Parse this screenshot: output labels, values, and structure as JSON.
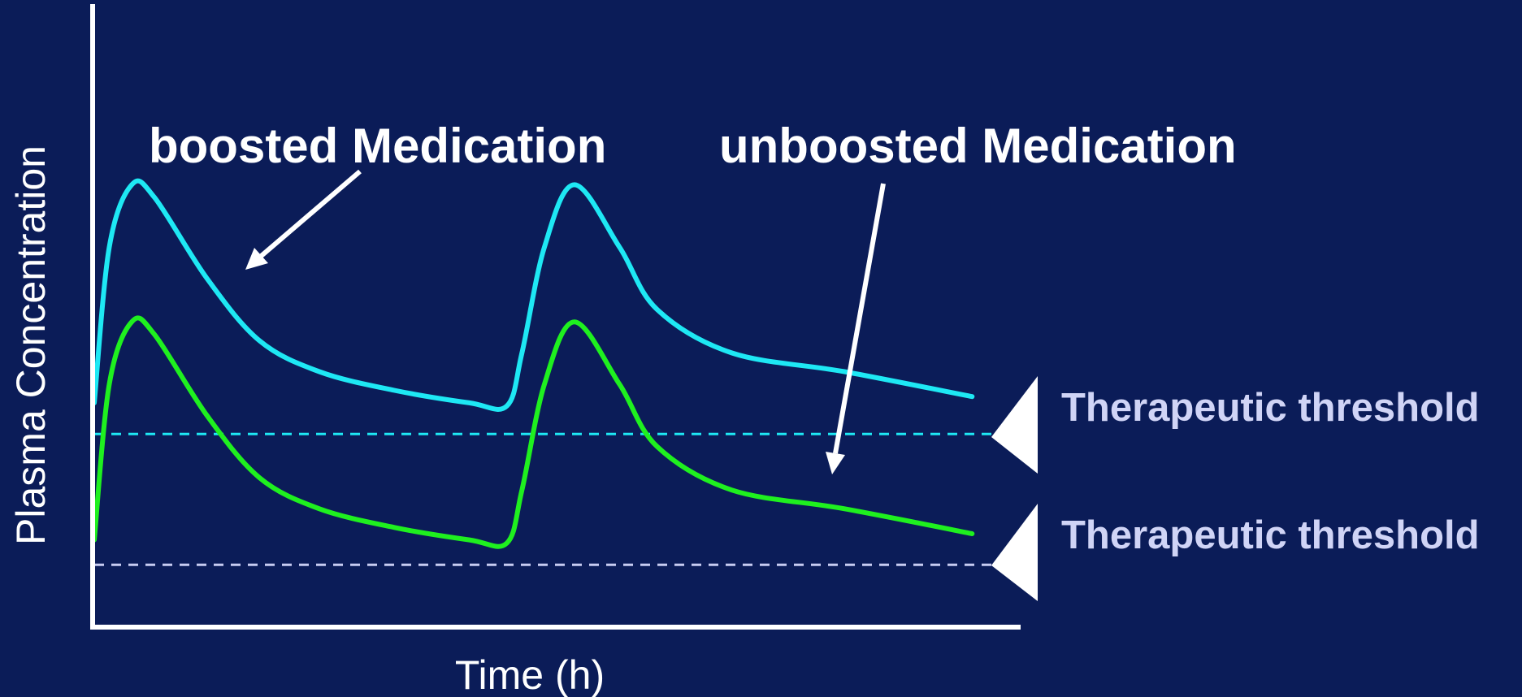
{
  "chart_data": {
    "type": "line",
    "title": "",
    "xlabel": "Time (h)",
    "ylabel": "Plasma Concentration",
    "xlim": [
      0,
      12
    ],
    "ylim": [
      0,
      10
    ],
    "grid": false,
    "legend": "none",
    "series": [
      {
        "color": "#1ee8f4",
        "x": [
          0,
          0.2,
          0.5,
          0.8,
          1.5,
          2.2,
          3,
          4,
          5,
          5.5,
          5.7,
          6,
          6.4,
          7,
          7.5,
          8.5,
          10,
          11.7
        ],
        "y": [
          3.6,
          6.1,
          7.1,
          6.9,
          5.6,
          4.6,
          4.1,
          3.8,
          3.6,
          3.55,
          4.4,
          6.1,
          7.1,
          6.1,
          5.1,
          4.4,
          4.1,
          3.7
        ]
      },
      {
        "color": "#1ff01f",
        "x": [
          0,
          0.2,
          0.5,
          0.8,
          1.5,
          2.2,
          3,
          4,
          5,
          5.5,
          5.7,
          6,
          6.4,
          7,
          7.5,
          8.5,
          10,
          11.7
        ],
        "y": [
          1.4,
          3.9,
          4.9,
          4.7,
          3.4,
          2.4,
          1.9,
          1.6,
          1.4,
          1.35,
          2.2,
          3.9,
          4.9,
          3.9,
          2.9,
          2.2,
          1.9,
          1.5
        ]
      }
    ],
    "thresholds": [
      {
        "value": 3.1,
        "color": "#1ee8f4",
        "label": "Therapeutic threshold"
      },
      {
        "value": 1.0,
        "color": "#c7ccf2",
        "label": "Therapeutic threshold"
      }
    ],
    "annotations": [
      {
        "text": "boosted Medication"
      },
      {
        "text": "unboosted Medication"
      }
    ]
  }
}
